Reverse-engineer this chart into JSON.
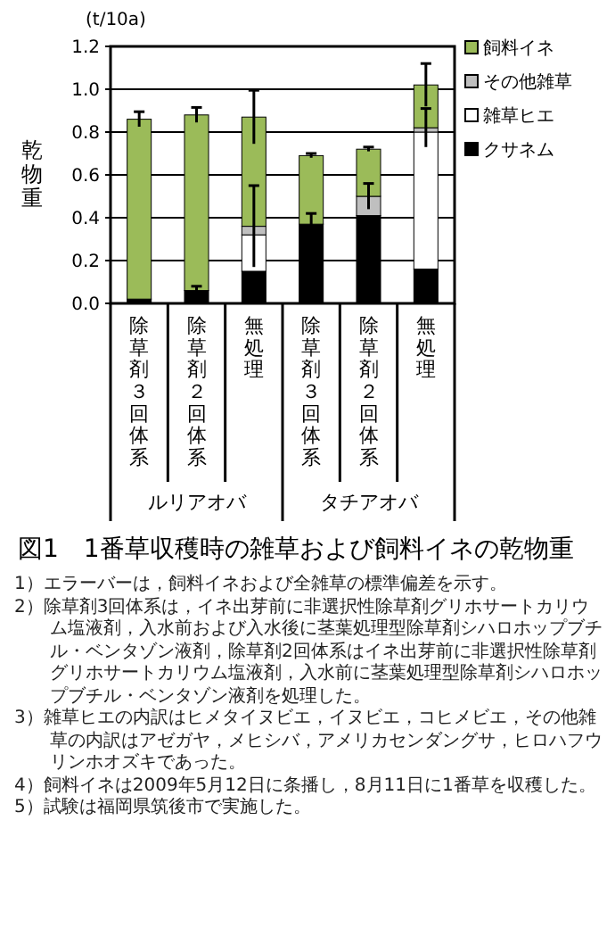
{
  "chart_data": {
    "type": "bar",
    "stacked": true,
    "title": "図1　1番草収穫時の雑草および飼料イネの乾物重",
    "ylabel": "乾物重",
    "categories": [
      "除草剤３回体系",
      "除草剤２回体系",
      "無処理",
      "除草剤３回体系",
      "除草剤２回体系",
      "無処理"
    ],
    "series": [
      {
        "name": "クサネム",
        "color": "#000000",
        "values": [
          0.02,
          0.06,
          0.15,
          0.37,
          0.41,
          0.16
        ],
        "errors": [
          null,
          0.02,
          null,
          0.05,
          null,
          null
        ]
      },
      {
        "name": "雑草ヒエ",
        "color": "#ffffff",
        "values": [
          0,
          0,
          0.17,
          0,
          0,
          0.64
        ]
      },
      {
        "name": "その他雑草",
        "color": "#bfbfbf",
        "values": [
          0,
          0,
          0.04,
          0,
          0.09,
          0.02
        ],
        "errors": [
          null,
          null,
          0.19,
          null,
          0.06,
          0.09
        ]
      },
      {
        "name": "飼料イネ",
        "color": "#9bbb59",
        "values": [
          0.84,
          0.82,
          0.51,
          0.32,
          0.22,
          0.2
        ],
        "errors": [
          0.035,
          0.035,
          0.125,
          0.01,
          0.01,
          0.1
        ]
      }
    ],
    "ylim": [
      0,
      1.2
    ],
    "yticks": [
      {
        "value": 0,
        "label": "0.0"
      },
      {
        "value": 0.2,
        "label": "0.2"
      },
      {
        "value": 0.4,
        "label": "0.4"
      },
      {
        "value": 0.6,
        "label": "0.6"
      },
      {
        "value": 0.8,
        "label": "0.8"
      },
      {
        "value": 1,
        "label": "1.0"
      },
      {
        "value": 1.2,
        "label": "1.2"
      }
    ],
    "grid": "y",
    "legend": "right",
    "annotations": [
      "(t/10a)",
      "ルリアオバ",
      "タチアオバ",
      "1）エラーバーは，飼料イネおよび全雑草の標準偏差を示す。",
      "2）除草剤3回体系は，イネ出芽前に非選択性除草剤グリホサートカリウム塩液剤，入水前および入水後に茎葉処理型除草剤シハロホップブチル・ベンタゾン液剤，除草剤2回体系はイネ出芽前に非選択性除草剤グリホサートカリウム塩液剤，入水前に茎葉処理型除草剤シハロホップブチル・ベンタゾン液剤を処理した。",
      "3）雑草ヒエの内訳はヒメタイヌビエ，イヌビエ，コヒメビエ，その他雑草の内訳はアゼガヤ，メヒシバ，アメリカセンダングサ，ヒロハフウリンホオズキであった。",
      "4）飼料イネは2009年5月12日に条播し，8月11日に1番草を収穫した。",
      "5）試験は福岡県筑後市で実施した。"
    ]
  }
}
